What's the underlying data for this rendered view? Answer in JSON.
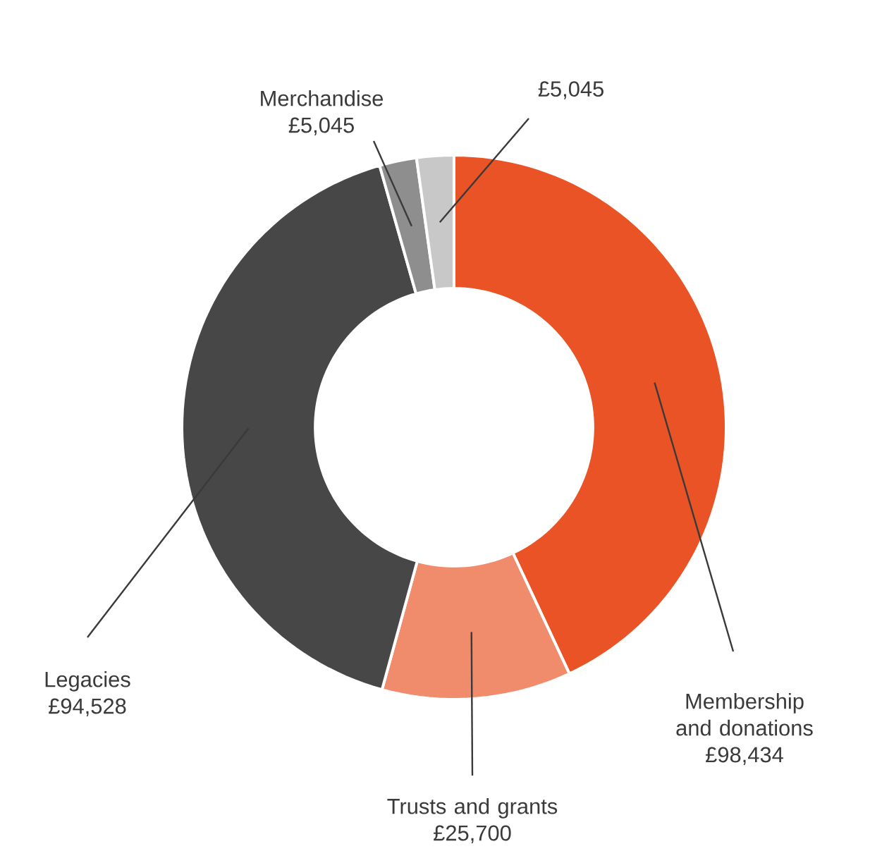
{
  "chart_data": {
    "type": "donut",
    "categories": [
      "Membership and donations",
      "Trusts and grants",
      "Legacies",
      "Merchandise",
      null
    ],
    "values": [
      98434,
      25700,
      94528,
      5045,
      5045
    ],
    "value_labels": [
      "£98,434",
      "£25,700",
      "£94,528",
      "£5,045",
      "£5,045"
    ],
    "colors": [
      "#e95325",
      "#f08c6c",
      "#474747",
      "#8e8e8e",
      "#c8c8c8"
    ]
  }
}
